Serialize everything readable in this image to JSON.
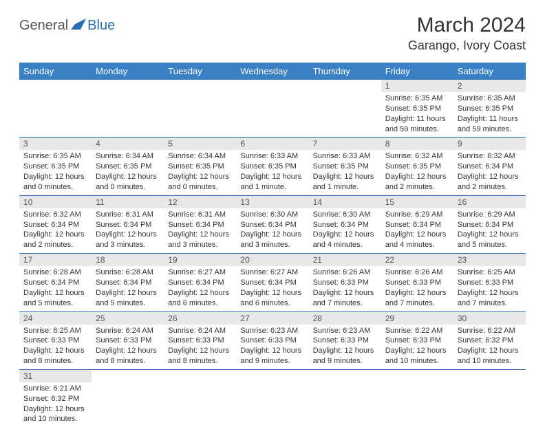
{
  "logo": {
    "general": "General",
    "blue": "Blue"
  },
  "title": "March 2024",
  "location": "Garango, Ivory Coast",
  "colors": {
    "header_bg": "#3a80c4",
    "header_text": "#ffffff",
    "daynum_bg": "#e8e8e8",
    "border": "#2a6db5",
    "logo_blue": "#2a6db5",
    "logo_gray": "#555555"
  },
  "weekdays": [
    "Sunday",
    "Monday",
    "Tuesday",
    "Wednesday",
    "Thursday",
    "Friday",
    "Saturday"
  ],
  "grid": [
    [
      {
        "n": "",
        "sr": "",
        "ss": "",
        "dl": ""
      },
      {
        "n": "",
        "sr": "",
        "ss": "",
        "dl": ""
      },
      {
        "n": "",
        "sr": "",
        "ss": "",
        "dl": ""
      },
      {
        "n": "",
        "sr": "",
        "ss": "",
        "dl": ""
      },
      {
        "n": "",
        "sr": "",
        "ss": "",
        "dl": ""
      },
      {
        "n": "1",
        "sr": "Sunrise: 6:35 AM",
        "ss": "Sunset: 6:35 PM",
        "dl": "Daylight: 11 hours and 59 minutes."
      },
      {
        "n": "2",
        "sr": "Sunrise: 6:35 AM",
        "ss": "Sunset: 6:35 PM",
        "dl": "Daylight: 11 hours and 59 minutes."
      }
    ],
    [
      {
        "n": "3",
        "sr": "Sunrise: 6:35 AM",
        "ss": "Sunset: 6:35 PM",
        "dl": "Daylight: 12 hours and 0 minutes."
      },
      {
        "n": "4",
        "sr": "Sunrise: 6:34 AM",
        "ss": "Sunset: 6:35 PM",
        "dl": "Daylight: 12 hours and 0 minutes."
      },
      {
        "n": "5",
        "sr": "Sunrise: 6:34 AM",
        "ss": "Sunset: 6:35 PM",
        "dl": "Daylight: 12 hours and 0 minutes."
      },
      {
        "n": "6",
        "sr": "Sunrise: 6:33 AM",
        "ss": "Sunset: 6:35 PM",
        "dl": "Daylight: 12 hours and 1 minute."
      },
      {
        "n": "7",
        "sr": "Sunrise: 6:33 AM",
        "ss": "Sunset: 6:35 PM",
        "dl": "Daylight: 12 hours and 1 minute."
      },
      {
        "n": "8",
        "sr": "Sunrise: 6:32 AM",
        "ss": "Sunset: 6:35 PM",
        "dl": "Daylight: 12 hours and 2 minutes."
      },
      {
        "n": "9",
        "sr": "Sunrise: 6:32 AM",
        "ss": "Sunset: 6:34 PM",
        "dl": "Daylight: 12 hours and 2 minutes."
      }
    ],
    [
      {
        "n": "10",
        "sr": "Sunrise: 6:32 AM",
        "ss": "Sunset: 6:34 PM",
        "dl": "Daylight: 12 hours and 2 minutes."
      },
      {
        "n": "11",
        "sr": "Sunrise: 6:31 AM",
        "ss": "Sunset: 6:34 PM",
        "dl": "Daylight: 12 hours and 3 minutes."
      },
      {
        "n": "12",
        "sr": "Sunrise: 6:31 AM",
        "ss": "Sunset: 6:34 PM",
        "dl": "Daylight: 12 hours and 3 minutes."
      },
      {
        "n": "13",
        "sr": "Sunrise: 6:30 AM",
        "ss": "Sunset: 6:34 PM",
        "dl": "Daylight: 12 hours and 3 minutes."
      },
      {
        "n": "14",
        "sr": "Sunrise: 6:30 AM",
        "ss": "Sunset: 6:34 PM",
        "dl": "Daylight: 12 hours and 4 minutes."
      },
      {
        "n": "15",
        "sr": "Sunrise: 6:29 AM",
        "ss": "Sunset: 6:34 PM",
        "dl": "Daylight: 12 hours and 4 minutes."
      },
      {
        "n": "16",
        "sr": "Sunrise: 6:29 AM",
        "ss": "Sunset: 6:34 PM",
        "dl": "Daylight: 12 hours and 5 minutes."
      }
    ],
    [
      {
        "n": "17",
        "sr": "Sunrise: 6:28 AM",
        "ss": "Sunset: 6:34 PM",
        "dl": "Daylight: 12 hours and 5 minutes."
      },
      {
        "n": "18",
        "sr": "Sunrise: 6:28 AM",
        "ss": "Sunset: 6:34 PM",
        "dl": "Daylight: 12 hours and 5 minutes."
      },
      {
        "n": "19",
        "sr": "Sunrise: 6:27 AM",
        "ss": "Sunset: 6:34 PM",
        "dl": "Daylight: 12 hours and 6 minutes."
      },
      {
        "n": "20",
        "sr": "Sunrise: 6:27 AM",
        "ss": "Sunset: 6:34 PM",
        "dl": "Daylight: 12 hours and 6 minutes."
      },
      {
        "n": "21",
        "sr": "Sunrise: 6:26 AM",
        "ss": "Sunset: 6:33 PM",
        "dl": "Daylight: 12 hours and 7 minutes."
      },
      {
        "n": "22",
        "sr": "Sunrise: 6:26 AM",
        "ss": "Sunset: 6:33 PM",
        "dl": "Daylight: 12 hours and 7 minutes."
      },
      {
        "n": "23",
        "sr": "Sunrise: 6:25 AM",
        "ss": "Sunset: 6:33 PM",
        "dl": "Daylight: 12 hours and 7 minutes."
      }
    ],
    [
      {
        "n": "24",
        "sr": "Sunrise: 6:25 AM",
        "ss": "Sunset: 6:33 PM",
        "dl": "Daylight: 12 hours and 8 minutes."
      },
      {
        "n": "25",
        "sr": "Sunrise: 6:24 AM",
        "ss": "Sunset: 6:33 PM",
        "dl": "Daylight: 12 hours and 8 minutes."
      },
      {
        "n": "26",
        "sr": "Sunrise: 6:24 AM",
        "ss": "Sunset: 6:33 PM",
        "dl": "Daylight: 12 hours and 8 minutes."
      },
      {
        "n": "27",
        "sr": "Sunrise: 6:23 AM",
        "ss": "Sunset: 6:33 PM",
        "dl": "Daylight: 12 hours and 9 minutes."
      },
      {
        "n": "28",
        "sr": "Sunrise: 6:23 AM",
        "ss": "Sunset: 6:33 PM",
        "dl": "Daylight: 12 hours and 9 minutes."
      },
      {
        "n": "29",
        "sr": "Sunrise: 6:22 AM",
        "ss": "Sunset: 6:33 PM",
        "dl": "Daylight: 12 hours and 10 minutes."
      },
      {
        "n": "30",
        "sr": "Sunrise: 6:22 AM",
        "ss": "Sunset: 6:32 PM",
        "dl": "Daylight: 12 hours and 10 minutes."
      }
    ],
    [
      {
        "n": "31",
        "sr": "Sunrise: 6:21 AM",
        "ss": "Sunset: 6:32 PM",
        "dl": "Daylight: 12 hours and 10 minutes."
      },
      {
        "n": "",
        "sr": "",
        "ss": "",
        "dl": ""
      },
      {
        "n": "",
        "sr": "",
        "ss": "",
        "dl": ""
      },
      {
        "n": "",
        "sr": "",
        "ss": "",
        "dl": ""
      },
      {
        "n": "",
        "sr": "",
        "ss": "",
        "dl": ""
      },
      {
        "n": "",
        "sr": "",
        "ss": "",
        "dl": ""
      },
      {
        "n": "",
        "sr": "",
        "ss": "",
        "dl": ""
      }
    ]
  ]
}
